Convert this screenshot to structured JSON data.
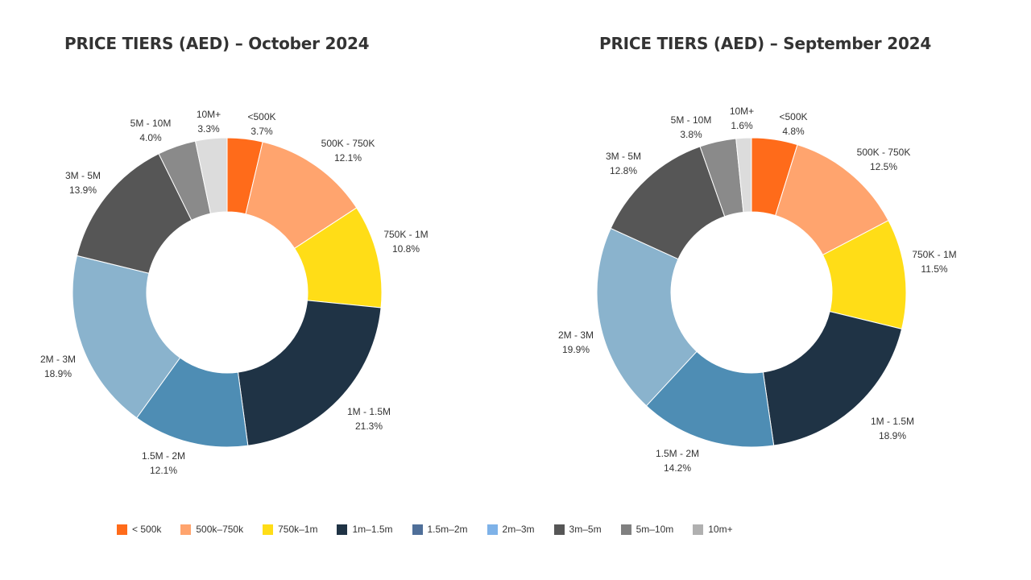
{
  "chart_data": [
    {
      "type": "pie",
      "title": "PRICE TIERS (AED) – October 2024",
      "slices": [
        {
          "label": "<500K",
          "value": 3.7,
          "value_label": "3.7%",
          "color": "#FF6B1A"
        },
        {
          "label": "500K - 750K",
          "value": 12.1,
          "value_label": "12.1%",
          "color": "#FFA46E"
        },
        {
          "label": "750K - 1M",
          "value": 10.8,
          "value_label": "10.8%",
          "color": "#FFDD17"
        },
        {
          "label": "1M - 1.5M",
          "value": 21.3,
          "value_label": "21.3%",
          "color": "#1F3345"
        },
        {
          "label": "1.5M - 2M",
          "value": 12.1,
          "value_label": "12.1%",
          "color": "#4E8DB4"
        },
        {
          "label": "2M - 3M",
          "value": 18.9,
          "value_label": "18.9%",
          "color": "#8AB3CD"
        },
        {
          "label": "3M - 5M",
          "value": 13.9,
          "value_label": "13.9%",
          "color": "#565656"
        },
        {
          "label": "5M - 10M",
          "value": 4.0,
          "value_label": "4.0%",
          "color": "#8A8A8A"
        },
        {
          "label": "10M+",
          "value": 3.3,
          "value_label": "3.3%",
          "color": "#DCDCDC"
        }
      ]
    },
    {
      "type": "pie",
      "title": "PRICE TIERS (AED) – September 2024",
      "slices": [
        {
          "label": "<500K",
          "value": 4.8,
          "value_label": "4.8%",
          "color": "#FF6B1A"
        },
        {
          "label": "500K - 750K",
          "value": 12.5,
          "value_label": "12.5%",
          "color": "#FFA46E"
        },
        {
          "label": "750K - 1M",
          "value": 11.5,
          "value_label": "11.5%",
          "color": "#FFDD17"
        },
        {
          "label": "1M - 1.5M",
          "value": 18.9,
          "value_label": "18.9%",
          "color": "#1F3345"
        },
        {
          "label": "1.5M - 2M",
          "value": 14.2,
          "value_label": "14.2%",
          "color": "#4E8DB4"
        },
        {
          "label": "2M - 3M",
          "value": 19.9,
          "value_label": "19.9%",
          "color": "#8AB3CD"
        },
        {
          "label": "3M - 5M",
          "value": 12.8,
          "value_label": "12.8%",
          "color": "#565656"
        },
        {
          "label": "5M - 10M",
          "value": 3.8,
          "value_label": "3.8%",
          "color": "#8A8A8A"
        },
        {
          "label": "10M+",
          "value": 1.6,
          "value_label": "1.6%",
          "color": "#DCDCDC"
        }
      ]
    }
  ],
  "legend": [
    {
      "label": "< 500k",
      "color": "#FF6B1A"
    },
    {
      "label": "500k–750k",
      "color": "#FFA46E"
    },
    {
      "label": "750k–1m",
      "color": "#FFDD17"
    },
    {
      "label": "1m–1.5m",
      "color": "#1F3345"
    },
    {
      "label": "1.5m–2m",
      "color": "#4F6F99"
    },
    {
      "label": "2m–3m",
      "color": "#7EB2E8"
    },
    {
      "label": "3m–5m",
      "color": "#565656"
    },
    {
      "label": "5m–10m",
      "color": "#808080"
    },
    {
      "label": "10m+",
      "color": "#B0B0B0"
    }
  ]
}
